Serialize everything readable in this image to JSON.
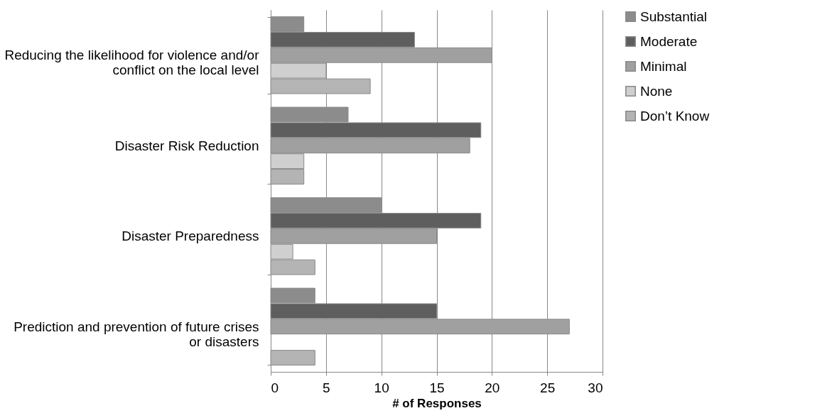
{
  "chart_data": {
    "type": "bar",
    "orientation": "horizontal",
    "xlabel": "# of Responses",
    "categories": [
      "Reducing the likelihood for violence and/or conflict on the local level",
      "Disaster Risk Reduction",
      "Disaster Preparedness",
      "Prediction and prevention of future crises or disasters"
    ],
    "series": [
      {
        "name": "Substantial",
        "color": "#8c8c8c",
        "values": [
          3,
          7,
          10,
          4
        ]
      },
      {
        "name": "Moderate",
        "color": "#5e5e5e",
        "values": [
          13,
          19,
          19,
          15
        ]
      },
      {
        "name": "Minimal",
        "color": "#a0a0a0",
        "values": [
          20,
          18,
          15,
          27
        ]
      },
      {
        "name": "None",
        "color": "#cfcfcf",
        "values": [
          5,
          3,
          2,
          null
        ]
      },
      {
        "name": "Don’t Know",
        "color": "#b4b4b4",
        "values": [
          9,
          3,
          4,
          4
        ]
      }
    ],
    "xlim": [
      0,
      30
    ],
    "xticks": [
      0,
      5,
      10,
      15,
      20,
      25,
      30
    ],
    "grid": "x",
    "legend": "right"
  }
}
